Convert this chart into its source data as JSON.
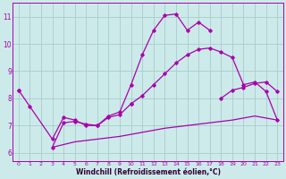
{
  "bg_color": "#cceaea",
  "grid_color": "#aacccc",
  "line_color": "#aa00aa",
  "xlabel": "Windchill (Refroidissement éolien,°C)",
  "xlabel_color": "#330033",
  "xlim": [
    -0.5,
    23.5
  ],
  "ylim": [
    5.7,
    11.5
  ],
  "yticks": [
    6,
    7,
    8,
    9,
    10,
    11
  ],
  "xticks": [
    0,
    1,
    2,
    3,
    4,
    5,
    6,
    7,
    8,
    9,
    10,
    11,
    12,
    13,
    14,
    15,
    16,
    17,
    18,
    19,
    20,
    21,
    22,
    23
  ],
  "curve1_x": [
    0,
    1,
    3,
    4,
    5,
    6,
    7,
    8,
    9,
    10
  ],
  "curve1_y": [
    8.3,
    7.7,
    6.5,
    7.3,
    7.2,
    7.0,
    7.0,
    7.3,
    7.4,
    7.8
  ],
  "curve2_x": [
    3,
    4,
    5,
    6,
    7,
    8,
    9,
    10,
    11,
    12,
    13,
    14,
    15,
    16,
    17
  ],
  "curve2_y": [
    6.2,
    7.1,
    7.15,
    7.05,
    7.0,
    7.35,
    7.5,
    8.5,
    9.6,
    10.5,
    11.05,
    11.1,
    10.5,
    10.8,
    10.5
  ],
  "curve3_x": [
    3,
    5,
    7,
    9,
    11,
    13,
    15,
    17,
    19,
    21,
    23
  ],
  "curve3_y": [
    6.2,
    6.4,
    6.5,
    6.6,
    6.75,
    6.9,
    7.0,
    7.1,
    7.2,
    7.35,
    7.2
  ],
  "curve4_x": [
    10,
    11,
    12,
    13,
    14,
    15,
    16,
    17,
    18,
    19,
    20,
    21,
    22,
    23
  ],
  "curve4_y": [
    7.8,
    8.1,
    8.5,
    8.9,
    9.3,
    9.6,
    9.8,
    9.85,
    9.7,
    9.5,
    8.5,
    8.6,
    8.25,
    7.2
  ],
  "curve5_x": [
    0,
    18,
    19,
    20,
    21,
    22,
    23
  ],
  "curve5_y": [
    8.3,
    8.0,
    8.3,
    8.4,
    8.55,
    8.6,
    8.25
  ]
}
